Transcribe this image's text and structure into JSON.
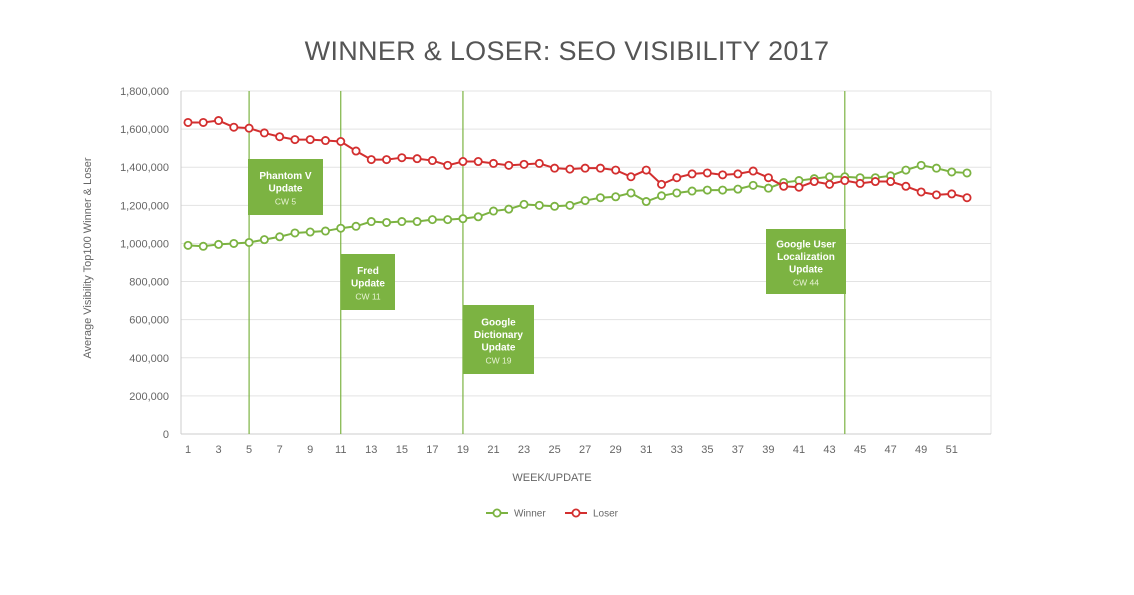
{
  "chart_data": {
    "type": "line",
    "title": "WINNER & LOSER: SEO VISIBILITY 2017",
    "xlabel": "WEEK/UPDATE",
    "ylabel": "Average Visibility Top100 Winner & Loser",
    "xlim": [
      1,
      52
    ],
    "ylim": [
      0,
      1800000
    ],
    "x_ticks": [
      1,
      3,
      5,
      7,
      9,
      11,
      13,
      15,
      17,
      19,
      21,
      23,
      25,
      27,
      29,
      31,
      33,
      35,
      37,
      39,
      41,
      43,
      45,
      47,
      49,
      51
    ],
    "y_ticks": [
      0,
      200000,
      400000,
      600000,
      800000,
      1000000,
      1200000,
      1400000,
      1600000,
      1800000
    ],
    "y_tick_labels": [
      "0",
      "200,000",
      "400,000",
      "600,000",
      "800,000",
      "1,000,000",
      "1,200,000",
      "1,400,000",
      "1,600,000",
      "1,800,000"
    ],
    "grid": true,
    "legend_position": "bottom-center",
    "x": [
      1,
      2,
      3,
      4,
      5,
      6,
      7,
      8,
      9,
      10,
      11,
      12,
      13,
      14,
      15,
      16,
      17,
      18,
      19,
      20,
      21,
      22,
      23,
      24,
      25,
      26,
      27,
      28,
      29,
      30,
      31,
      32,
      33,
      34,
      35,
      36,
      37,
      38,
      39,
      40,
      41,
      42,
      43,
      44,
      45,
      46,
      47,
      48,
      49,
      50,
      51,
      52
    ],
    "series": [
      {
        "name": "Winner",
        "color": "#7cb342",
        "values": [
          990000,
          985000,
          995000,
          1000000,
          1005000,
          1020000,
          1035000,
          1055000,
          1060000,
          1065000,
          1080000,
          1090000,
          1115000,
          1110000,
          1115000,
          1115000,
          1125000,
          1125000,
          1130000,
          1140000,
          1170000,
          1180000,
          1205000,
          1200000,
          1195000,
          1200000,
          1225000,
          1240000,
          1245000,
          1265000,
          1220000,
          1250000,
          1265000,
          1275000,
          1280000,
          1280000,
          1285000,
          1305000,
          1290000,
          1320000,
          1330000,
          1340000,
          1350000,
          1350000,
          1345000,
          1345000,
          1355000,
          1385000,
          1410000,
          1395000,
          1375000,
          1370000
        ]
      },
      {
        "name": "Loser",
        "color": "#d32f2f",
        "values": [
          1635000,
          1635000,
          1645000,
          1610000,
          1605000,
          1580000,
          1560000,
          1545000,
          1545000,
          1540000,
          1535000,
          1485000,
          1440000,
          1440000,
          1450000,
          1445000,
          1435000,
          1410000,
          1430000,
          1430000,
          1420000,
          1410000,
          1415000,
          1420000,
          1395000,
          1390000,
          1395000,
          1395000,
          1385000,
          1350000,
          1385000,
          1310000,
          1345000,
          1365000,
          1370000,
          1360000,
          1365000,
          1380000,
          1345000,
          1300000,
          1295000,
          1325000,
          1310000,
          1330000,
          1315000,
          1325000,
          1325000,
          1300000,
          1270000,
          1255000,
          1260000,
          1240000
        ]
      }
    ],
    "annotations": [
      {
        "x": 5,
        "lines": [
          "Phantom V",
          "Update"
        ],
        "sub": "CW 5"
      },
      {
        "x": 11,
        "lines": [
          "Fred",
          "Update"
        ],
        "sub": "CW 11"
      },
      {
        "x": 19,
        "lines": [
          "Google",
          "Dictionary",
          "Update"
        ],
        "sub": "CW 19"
      },
      {
        "x": 44,
        "lines": [
          "Google User",
          "Localization",
          "Update"
        ],
        "sub": "CW 44"
      }
    ],
    "annotation_color": "#7cb342"
  }
}
